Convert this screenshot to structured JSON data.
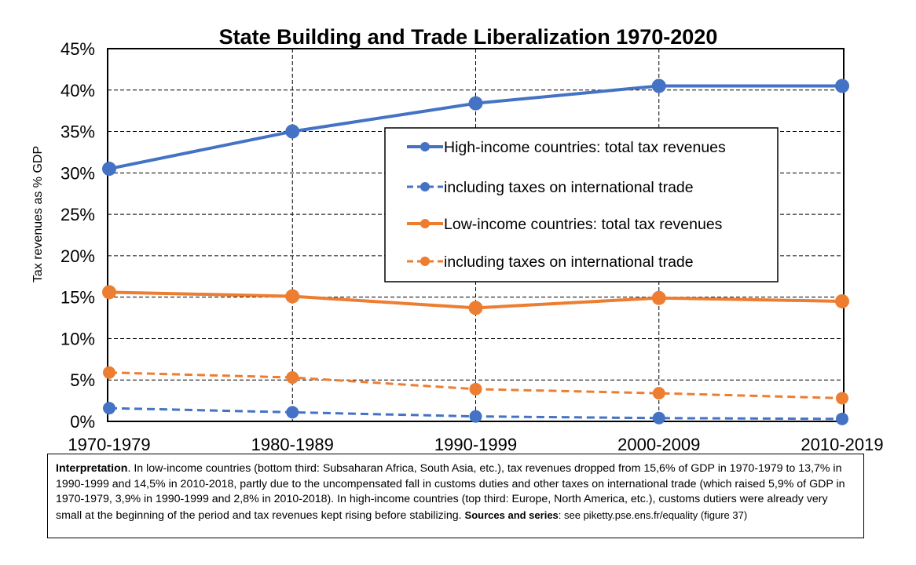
{
  "chart_data": {
    "type": "line",
    "title": "State Building and Trade Liberalization 1970-2020",
    "ylabel": "Tax revenues as % GDP",
    "xlabel": "",
    "categories": [
      "1970-1979",
      "1980-1989",
      "1990-1999",
      "2000-2009",
      "2010-2019"
    ],
    "ylim": [
      0,
      45
    ],
    "yticks": [
      "0%",
      "5%",
      "10%",
      "15%",
      "20%",
      "25%",
      "30%",
      "35%",
      "40%",
      "45%"
    ],
    "grid": true,
    "legend_position": "center-right",
    "series": [
      {
        "name": "High-income countries: total tax revenues",
        "values": [
          30.5,
          35.0,
          38.4,
          40.5,
          40.5
        ],
        "color": "#4472C4",
        "style": "solid"
      },
      {
        "name": "including taxes on international trade",
        "values": [
          1.6,
          1.1,
          0.6,
          0.4,
          0.3
        ],
        "color": "#4472C4",
        "style": "dashed"
      },
      {
        "name": "Low-income countries: total tax revenues",
        "values": [
          15.6,
          15.1,
          13.7,
          14.9,
          14.5
        ],
        "color": "#ED7D31",
        "style": "solid"
      },
      {
        "name": "including taxes on international trade",
        "values": [
          5.9,
          5.3,
          3.9,
          3.4,
          2.8
        ],
        "color": "#ED7D31",
        "style": "dashed"
      }
    ]
  },
  "note": {
    "interp_label": "Interpretation",
    "interp_text": ". In low-income countries (bottom third: Subsaharan Africa, South Asia, etc.), tax revenues dropped from 15,6% of GDP in 1970-1979 to 13,7% in 1990-1999 and 14,5% in 2010-2018, partly due to the uncompensated fall in customs duties and other taxes on international trade (which raised 5,9% of GDP in 1970-1979, 3,9% in 1990-1999 and 2,8% in 2010-2018). In high-income countries (top third: Europe, North America, etc.), customs dutiers were already very small at the beginning of the period and tax revenues kept rising before stabilizing.",
    "sources_label": "Sources and series",
    "sources_text": ": see piketty.pse.ens.fr/equality (figure 37)"
  }
}
